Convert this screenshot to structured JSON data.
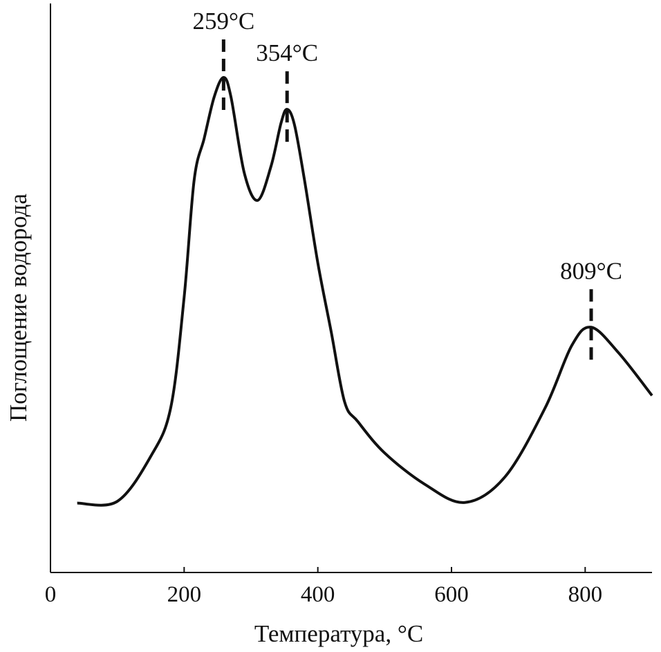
{
  "chart_data": {
    "type": "line",
    "title": "",
    "xlabel": "Температура, °C",
    "ylabel": "Поглощение водорода",
    "xlim": [
      0,
      900
    ],
    "ylim": [
      0,
      1
    ],
    "x_ticks": [
      0,
      200,
      400,
      600,
      800
    ],
    "x_tick_labels": [
      "0",
      "200",
      "400",
      "600",
      "800"
    ],
    "y_ticks": [],
    "grid": false,
    "line_color": "#111111",
    "series": [
      {
        "x": [
          40,
          100,
          150,
          180,
          200,
          215,
          230,
          245,
          259,
          270,
          290,
          310,
          330,
          345,
          354,
          365,
          380,
          400,
          420,
          440,
          460,
          500,
          560,
          620,
          680,
          740,
          780,
          809,
          850,
          900
        ],
        "y": [
          0.122,
          0.125,
          0.204,
          0.29,
          0.484,
          0.69,
          0.763,
          0.836,
          0.87,
          0.836,
          0.702,
          0.654,
          0.714,
          0.79,
          0.814,
          0.787,
          0.69,
          0.544,
          0.423,
          0.3,
          0.265,
          0.21,
          0.155,
          0.123,
          0.168,
          0.289,
          0.399,
          0.431,
          0.386,
          0.311
        ]
      }
    ],
    "annotations": [
      {
        "label": "259°C",
        "x": 259
      },
      {
        "label": "354°C",
        "x": 354
      },
      {
        "label": "809°C",
        "x": 809
      }
    ]
  }
}
